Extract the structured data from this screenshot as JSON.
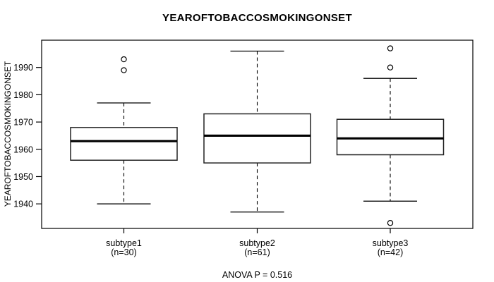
{
  "chart_data": {
    "type": "boxplot",
    "title": "YEAROFTOBACCOSMOKINGONSET",
    "ylabel": "YEAROFTOBACCOSMOKINGONSET",
    "xlabel": "",
    "annotation": "ANOVA P = 0.516",
    "ylim": [
      1931,
      2000
    ],
    "yticks": [
      1940,
      1950,
      1960,
      1970,
      1980,
      1990
    ],
    "grid": false,
    "categories": [
      "subtype1",
      "subtype2",
      "subtype3"
    ],
    "category_sublabels": [
      "(n=30)",
      "(n=61)",
      "(n=42)"
    ],
    "series": [
      {
        "name": "subtype1",
        "n": 30,
        "whisker_low": 1940,
        "q1": 1956,
        "median": 1963,
        "q3": 1968,
        "whisker_high": 1977,
        "outliers": [
          1989,
          1993
        ]
      },
      {
        "name": "subtype2",
        "n": 61,
        "whisker_low": 1937,
        "q1": 1955,
        "median": 1965,
        "q3": 1973,
        "whisker_high": 1996,
        "outliers": []
      },
      {
        "name": "subtype3",
        "n": 42,
        "whisker_low": 1941,
        "q1": 1958,
        "median": 1964,
        "q3": 1971,
        "whisker_high": 1986,
        "outliers": [
          1933,
          1990,
          1997
        ]
      }
    ],
    "colors": {
      "line": "#000000",
      "box_fill": "#ffffff",
      "background": "#ffffff"
    }
  }
}
